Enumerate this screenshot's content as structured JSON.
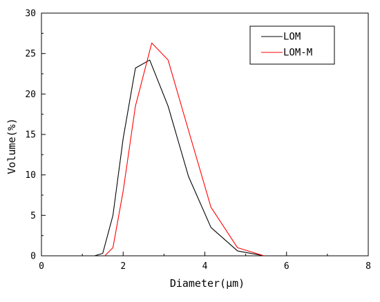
{
  "chart_data": {
    "type": "line",
    "title": "",
    "xlabel": "Diameter(μm)",
    "ylabel": "Volume(%)",
    "xlim": [
      0,
      8
    ],
    "ylim": [
      0,
      30
    ],
    "xticks": [
      0,
      2,
      4,
      6,
      8
    ],
    "yticks": [
      0,
      5,
      10,
      15,
      20,
      25,
      30
    ],
    "grid": false,
    "legend_position": "top-right",
    "series": [
      {
        "name": "LOM",
        "color": "#000000",
        "x": [
          1.3,
          1.5,
          1.75,
          2.0,
          2.3,
          2.65,
          3.1,
          3.6,
          4.15,
          4.8,
          5.45
        ],
        "y": [
          0,
          0.3,
          5.0,
          14.5,
          23.2,
          24.2,
          18.5,
          9.8,
          3.5,
          0.6,
          0
        ]
      },
      {
        "name": "LOM-M",
        "color": "#ff0000",
        "x": [
          1.55,
          1.75,
          2.0,
          2.3,
          2.7,
          3.1,
          3.6,
          4.15,
          4.8,
          5.45
        ],
        "y": [
          0,
          1.0,
          8.0,
          18.5,
          26.3,
          24.2,
          15.5,
          6.0,
          1.0,
          0
        ]
      }
    ]
  }
}
